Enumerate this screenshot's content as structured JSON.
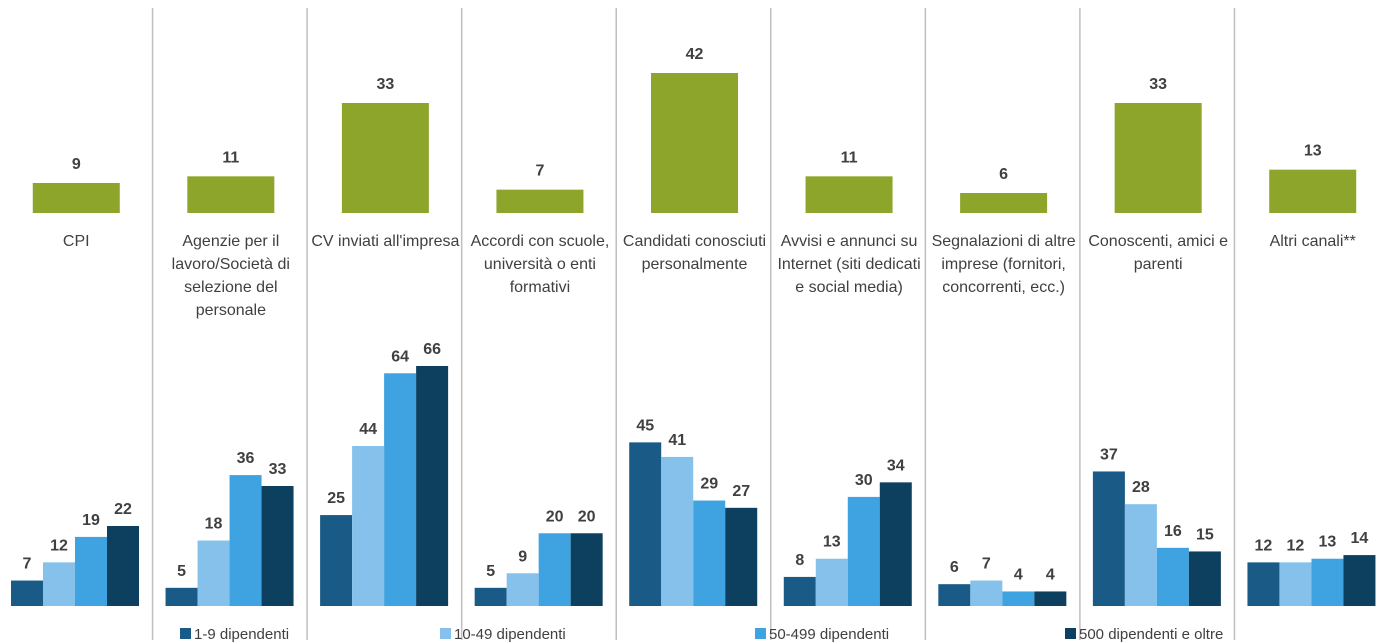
{
  "chart_data": [
    {
      "type": "bar",
      "color": "#8ea52c",
      "categories": [
        "CPI",
        "Agenzie per il lavoro/Società di selezione del personale",
        "CV inviati all'impresa",
        "Accordi con scuole, università o enti formativi",
        "Candidati conosciuti personalmente",
        "Avvisi e annunci su Internet (siti dedicati e social media)",
        "Segnalazioni di altre imprese (fornitori, concorrenti, ecc.)",
        "Conoscenti, amici e parenti",
        "Altri canali**"
      ],
      "values": [
        9,
        11,
        33,
        7,
        42,
        11,
        6,
        33,
        13
      ]
    },
    {
      "type": "grouped_bar",
      "legend": "bottom",
      "series": [
        {
          "name": "1-9 dipendenti",
          "color": "#1a5a86",
          "values": [
            7,
            5,
            25,
            5,
            45,
            8,
            6,
            37,
            12
          ]
        },
        {
          "name": "10-49 dipendenti",
          "color": "#85c1ea",
          "values": [
            12,
            18,
            44,
            9,
            41,
            13,
            7,
            28,
            12
          ]
        },
        {
          "name": "50-499 dipendenti",
          "color": "#3ea3e0",
          "values": [
            19,
            36,
            64,
            20,
            29,
            30,
            4,
            16,
            13
          ]
        },
        {
          "name": "500 dipendenti e oltre",
          "color": "#0d3f5f",
          "values": [
            22,
            33,
            66,
            20,
            27,
            34,
            4,
            15,
            14
          ]
        }
      ]
    }
  ]
}
